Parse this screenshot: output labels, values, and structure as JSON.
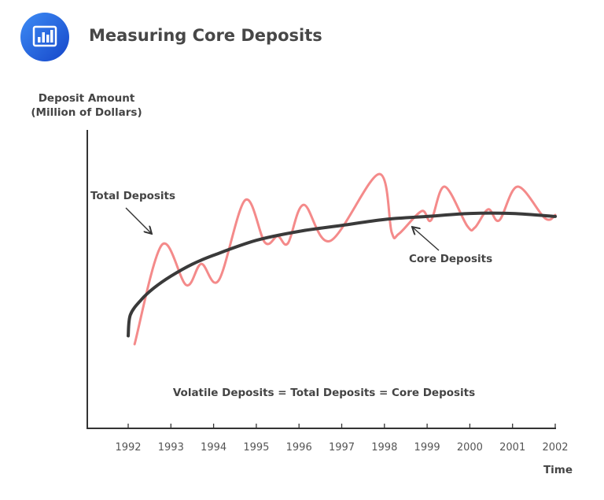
{
  "header": {
    "title": "Measuring Core Deposits",
    "icon": "bar-chart-icon",
    "icon_color": "#2a6ae6"
  },
  "chart_data": {
    "type": "line",
    "title": "Measuring Core Deposits",
    "ylabel_line1": "Deposit Amount",
    "ylabel_line2": "(Million of Dollars)",
    "xlabel": "Time",
    "x_ticks": [
      "1992",
      "1993",
      "1994",
      "1995",
      "1996",
      "1997",
      "1998",
      "1999",
      "2000",
      "2001",
      "2002"
    ],
    "xlim": [
      1992,
      2002
    ],
    "ylim": [
      0,
      100
    ],
    "grid": false,
    "series": [
      {
        "name": "Total Deposits",
        "color": "#f48a8a",
        "x": [
          1992.15,
          1992.79,
          1993.36,
          1993.71,
          1994.12,
          1994.74,
          1995.2,
          1995.5,
          1995.74,
          1996.11,
          1996.73,
          1997.87,
          1998.17,
          1998.34,
          1998.87,
          1999.09,
          1999.41,
          1999.94,
          2000.12,
          2000.43,
          2000.69,
          2001.12,
          2001.76,
          2002.0
        ],
        "y": [
          28.2,
          61.5,
          48.0,
          55.1,
          49.6,
          76.5,
          62.3,
          64.4,
          62.0,
          74.9,
          62.8,
          85.2,
          65.7,
          65.2,
          72.8,
          69.7,
          81.0,
          67.8,
          67.3,
          73.4,
          69.7,
          81.0,
          70.4,
          71.5
        ]
      },
      {
        "name": "Core Deposits",
        "color": "#3a3a3a",
        "x": [
          1992.0,
          1992.05,
          1992.3,
          1992.6,
          1993.0,
          1993.5,
          1994.0,
          1995.0,
          1996.0,
          1997.0,
          1998.0,
          1999.0,
          2000.0,
          2001.0,
          2002.0
        ],
        "y": [
          31,
          38,
          43,
          47,
          51,
          55,
          58,
          63,
          66,
          68,
          70,
          71,
          72,
          72,
          71
        ]
      }
    ],
    "annotations": {
      "total": "Total Deposits",
      "core": "Core Deposits",
      "formula": "Volatile Deposits = Total Deposits = Core Deposits"
    }
  }
}
